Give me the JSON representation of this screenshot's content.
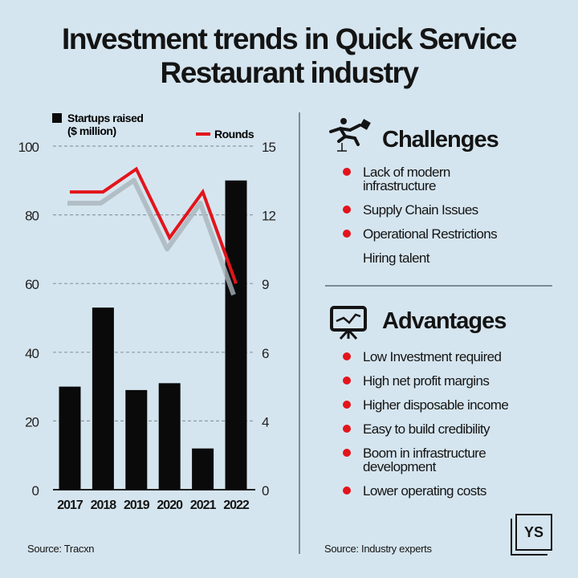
{
  "title": "Investment trends in Quick Service Restaurant industry",
  "chart_data": {
    "type": "bar+line",
    "categories": [
      "2017",
      "2018",
      "2019",
      "2020",
      "2021",
      "2022"
    ],
    "series": [
      {
        "name": "Startups raised ($ million)",
        "type": "bar",
        "axis": "left",
        "values": [
          30,
          53,
          29,
          31,
          12,
          90
        ],
        "color": "#0a0a0a"
      },
      {
        "name": "Rounds",
        "type": "line",
        "axis": "right",
        "values": [
          13,
          13,
          14,
          11,
          13,
          9
        ],
        "color": "#e3141b"
      }
    ],
    "left_axis": {
      "ticks": [
        "0",
        "20",
        "40",
        "60",
        "80",
        "100"
      ],
      "range": [
        0,
        100
      ]
    },
    "right_axis": {
      "ticks": [
        "0",
        "4",
        "6",
        "9",
        "12",
        "15"
      ],
      "range": [
        0,
        15
      ]
    },
    "grid": true,
    "legend_position": "top"
  },
  "legend": {
    "bars": "Startups raised",
    "bars_unit": "($ million)",
    "line": "Rounds"
  },
  "chart_source": "Source: Tracxn",
  "challenges": {
    "heading": "Challenges",
    "icon": "hurdle-runner-icon",
    "items": [
      {
        "text": "Lack of modern infrastructure",
        "bullet": true
      },
      {
        "text": "Supply Chain Issues",
        "bullet": true
      },
      {
        "text": "Operational Restrictions",
        "bullet": true
      },
      {
        "text": "Hiring talent",
        "bullet": false
      }
    ]
  },
  "advantages": {
    "heading": "Advantages",
    "icon": "presentation-chart-icon",
    "items": [
      {
        "text": "Low Investment required",
        "bullet": true
      },
      {
        "text": "High net profit margins",
        "bullet": true
      },
      {
        "text": "Higher disposable income",
        "bullet": true
      },
      {
        "text": "Easy to build credibility",
        "bullet": true
      },
      {
        "text": "Boom in infrastructure development",
        "bullet": true
      },
      {
        "text": "Lower operating costs",
        "bullet": true
      }
    ]
  },
  "right_source": "Source: Industry experts",
  "logo": "YS",
  "colors": {
    "background": "#d5e5ef",
    "accent": "#e3141b",
    "bar": "#0a0a0a"
  }
}
